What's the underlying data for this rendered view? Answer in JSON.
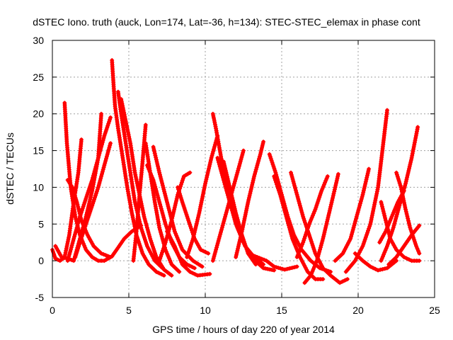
{
  "chart_data": {
    "type": "scatter",
    "title": "dSTEC Iono. truth (auck, Lon=174, Lat=-36, h=134): STEC-STEC_elemax in phase cont",
    "xlabel": "GPS time / hours of day 220 of year 2014",
    "ylabel": "dSTEC  / TECUs",
    "xlim": [
      0,
      25
    ],
    "ylim": [
      -5,
      30
    ],
    "xticks": [
      "0",
      "5",
      "10",
      "15",
      "20",
      "25"
    ],
    "yticks": [
      "-5",
      "0",
      "5",
      "10",
      "15",
      "20",
      "25",
      "30"
    ],
    "grid": true,
    "marker": "+",
    "color": "#ff0000",
    "passes": [
      [
        [
          0.0,
          1.5
        ],
        [
          0.2,
          0.3
        ],
        [
          0.5,
          0.0
        ],
        [
          0.8,
          0.5
        ],
        [
          1.1,
          3.5
        ],
        [
          1.4,
          8.0
        ],
        [
          1.7,
          12.0
        ],
        [
          1.9,
          16.5
        ]
      ],
      [
        [
          0.8,
          21.5
        ],
        [
          0.95,
          16.0
        ],
        [
          1.2,
          10.0
        ],
        [
          1.5,
          6.0
        ],
        [
          1.8,
          3.5
        ],
        [
          2.2,
          1.5
        ],
        [
          2.6,
          0.5
        ],
        [
          3.0,
          0.0
        ],
        [
          3.4,
          0.0
        ],
        [
          3.9,
          0.6
        ],
        [
          4.3,
          1.8
        ],
        [
          4.7,
          3.0
        ],
        [
          5.2,
          4.0
        ],
        [
          5.8,
          4.8
        ]
      ],
      [
        [
          0.2,
          2.0
        ],
        [
          0.6,
          0.5
        ],
        [
          1.0,
          0.3
        ],
        [
          1.4,
          0.0
        ],
        [
          1.8,
          3.0
        ],
        [
          2.2,
          6.0
        ],
        [
          2.6,
          9.5
        ],
        [
          3.0,
          14.0
        ],
        [
          3.2,
          20.0
        ]
      ],
      [
        [
          1.0,
          0.0
        ],
        [
          1.4,
          3.0
        ],
        [
          1.8,
          6.0
        ],
        [
          2.2,
          8.5
        ],
        [
          2.6,
          11.0
        ],
        [
          3.0,
          14.0
        ],
        [
          3.4,
          17.0
        ],
        [
          3.8,
          19.5
        ]
      ],
      [
        [
          1.5,
          0.5
        ],
        [
          1.8,
          2.5
        ],
        [
          2.2,
          5.0
        ],
        [
          2.6,
          7.5
        ],
        [
          3.0,
          10.0
        ],
        [
          3.4,
          13.0
        ],
        [
          3.8,
          16.0
        ]
      ],
      [
        [
          1.0,
          11.0
        ],
        [
          1.3,
          10.0
        ],
        [
          1.6,
          8.0
        ],
        [
          1.9,
          5.5
        ],
        [
          2.3,
          3.5
        ],
        [
          2.7,
          2.0
        ],
        [
          3.2,
          1.0
        ],
        [
          3.8,
          0.5
        ]
      ],
      [
        [
          3.9,
          27.3
        ],
        [
          4.0,
          24.0
        ],
        [
          4.1,
          21.0
        ],
        [
          4.3,
          18.0
        ],
        [
          4.6,
          14.0
        ],
        [
          4.9,
          10.0
        ],
        [
          5.2,
          6.5
        ],
        [
          5.5,
          3.5
        ],
        [
          5.9,
          1.0
        ],
        [
          6.3,
          -0.5
        ],
        [
          6.8,
          -1.5
        ],
        [
          7.3,
          -2.0
        ]
      ],
      [
        [
          4.3,
          23.0
        ],
        [
          4.5,
          20.0
        ],
        [
          4.8,
          16.0
        ],
        [
          5.1,
          12.0
        ],
        [
          5.4,
          8.0
        ],
        [
          5.8,
          4.5
        ],
        [
          6.2,
          2.0
        ],
        [
          6.7,
          0.0
        ],
        [
          7.2,
          -1.0
        ]
      ],
      [
        [
          4.5,
          22.0
        ],
        [
          4.8,
          19.0
        ],
        [
          5.1,
          16.0
        ],
        [
          5.4,
          12.0
        ],
        [
          5.7,
          9.0
        ],
        [
          6.0,
          6.0
        ],
        [
          6.4,
          3.0
        ],
        [
          6.8,
          0.5
        ],
        [
          7.3,
          -1.2
        ],
        [
          7.8,
          -2.0
        ]
      ],
      [
        [
          5.3,
          0.0
        ],
        [
          5.5,
          4.0
        ],
        [
          5.7,
          9.0
        ],
        [
          5.9,
          13.5
        ],
        [
          6.1,
          18.5
        ]
      ],
      [
        [
          6.1,
          16.0
        ],
        [
          6.4,
          12.0
        ],
        [
          6.7,
          8.0
        ],
        [
          7.0,
          4.5
        ],
        [
          7.4,
          1.5
        ],
        [
          7.8,
          -0.5
        ],
        [
          8.3,
          -1.5
        ]
      ],
      [
        [
          6.2,
          13.0
        ],
        [
          6.6,
          11.0
        ],
        [
          7.0,
          8.0
        ],
        [
          7.4,
          5.0
        ],
        [
          7.8,
          2.5
        ],
        [
          8.3,
          0.5
        ],
        [
          8.8,
          -0.5
        ],
        [
          9.3,
          -1.0
        ]
      ],
      [
        [
          6.6,
          15.5
        ],
        [
          7.0,
          12.0
        ],
        [
          7.5,
          8.0
        ],
        [
          8.0,
          4.0
        ],
        [
          8.5,
          1.5
        ],
        [
          9.2,
          0.0
        ],
        [
          9.8,
          -0.8
        ]
      ],
      [
        [
          7.5,
          4.0
        ],
        [
          8.0,
          2.0
        ],
        [
          8.5,
          -0.5
        ],
        [
          9.0,
          -1.5
        ],
        [
          9.5,
          -2.0
        ],
        [
          10.3,
          -1.8
        ]
      ],
      [
        [
          7.0,
          0.0
        ],
        [
          7.4,
          2.5
        ],
        [
          7.8,
          5.5
        ],
        [
          8.2,
          9.0
        ],
        [
          8.6,
          11.5
        ],
        [
          9.0,
          12.0
        ]
      ],
      [
        [
          8.2,
          10.0
        ],
        [
          8.5,
          8.0
        ],
        [
          8.9,
          5.5
        ],
        [
          9.3,
          3.0
        ],
        [
          9.7,
          1.5
        ],
        [
          10.2,
          1.0
        ]
      ],
      [
        [
          8.8,
          0.5
        ],
        [
          9.2,
          3.0
        ],
        [
          9.6,
          6.5
        ],
        [
          10.0,
          10.5
        ],
        [
          10.4,
          14.0
        ],
        [
          10.8,
          17.0
        ]
      ],
      [
        [
          10.5,
          20.0
        ],
        [
          10.7,
          18.0
        ],
        [
          11.0,
          14.5
        ],
        [
          11.3,
          11.0
        ],
        [
          11.7,
          7.5
        ],
        [
          12.1,
          4.5
        ],
        [
          12.6,
          2.0
        ],
        [
          13.2,
          0.5
        ],
        [
          13.8,
          -0.5
        ]
      ],
      [
        [
          10.8,
          14.0
        ],
        [
          11.2,
          11.0
        ],
        [
          11.6,
          8.0
        ],
        [
          12.0,
          5.0
        ],
        [
          12.5,
          2.5
        ],
        [
          13.0,
          0.5
        ],
        [
          13.8,
          -1.0
        ],
        [
          14.5,
          -1.3
        ]
      ],
      [
        [
          11.2,
          13.5
        ],
        [
          11.6,
          10.0
        ],
        [
          12.0,
          6.5
        ],
        [
          12.4,
          3.5
        ],
        [
          12.8,
          1.0
        ],
        [
          13.3,
          -0.5
        ]
      ],
      [
        [
          10.5,
          0.0
        ],
        [
          10.9,
          3.0
        ],
        [
          11.3,
          6.0
        ],
        [
          11.7,
          9.0
        ],
        [
          12.1,
          12.0
        ],
        [
          12.5,
          15.0
        ]
      ],
      [
        [
          12.0,
          0.5
        ],
        [
          12.4,
          4.0
        ],
        [
          12.8,
          8.0
        ],
        [
          13.2,
          11.5
        ],
        [
          13.6,
          14.5
        ],
        [
          13.8,
          16.2
        ]
      ],
      [
        [
          12.8,
          1.0
        ],
        [
          13.4,
          0.5
        ],
        [
          14.0,
          0.0
        ],
        [
          14.5,
          -0.8
        ],
        [
          15.2,
          -1.2
        ],
        [
          16.0,
          -0.8
        ]
      ],
      [
        [
          14.2,
          14.5
        ],
        [
          14.6,
          12.0
        ],
        [
          15.0,
          9.0
        ],
        [
          15.4,
          6.0
        ],
        [
          15.8,
          3.5
        ],
        [
          16.3,
          1.5
        ],
        [
          16.9,
          0.0
        ],
        [
          17.5,
          -1.0
        ],
        [
          18.2,
          -1.5
        ]
      ],
      [
        [
          14.5,
          11.5
        ],
        [
          14.9,
          9.0
        ],
        [
          15.3,
          6.0
        ],
        [
          15.7,
          3.0
        ],
        [
          16.2,
          0.5
        ],
        [
          16.7,
          -1.5
        ],
        [
          17.2,
          -2.5
        ],
        [
          17.7,
          -2.5
        ]
      ],
      [
        [
          15.6,
          12.0
        ],
        [
          16.0,
          9.0
        ],
        [
          16.4,
          6.0
        ],
        [
          16.8,
          3.5
        ],
        [
          17.2,
          1.0
        ],
        [
          17.7,
          -1.0
        ],
        [
          18.2,
          -2.0
        ],
        [
          18.8,
          -3.0
        ],
        [
          19.3,
          -2.5
        ]
      ],
      [
        [
          16.5,
          -3.0
        ],
        [
          16.9,
          -2.0
        ],
        [
          17.3,
          0.0
        ],
        [
          17.7,
          3.0
        ],
        [
          18.1,
          6.5
        ],
        [
          18.5,
          10.0
        ],
        [
          18.7,
          11.8
        ]
      ],
      [
        [
          16.0,
          0.5
        ],
        [
          16.4,
          2.5
        ],
        [
          16.8,
          5.0
        ],
        [
          17.2,
          7.0
        ],
        [
          17.6,
          9.5
        ],
        [
          18.0,
          11.5
        ]
      ],
      [
        [
          18.5,
          0.0
        ],
        [
          19.0,
          1.0
        ],
        [
          19.5,
          3.0
        ],
        [
          19.9,
          6.0
        ],
        [
          20.3,
          9.0
        ],
        [
          20.7,
          12.5
        ]
      ],
      [
        [
          19.2,
          -1.5
        ],
        [
          19.8,
          0.0
        ],
        [
          20.3,
          2.0
        ],
        [
          20.8,
          5.0
        ],
        [
          21.3,
          10.0
        ],
        [
          21.7,
          17.0
        ],
        [
          21.9,
          20.5
        ]
      ],
      [
        [
          19.8,
          1.0
        ],
        [
          20.3,
          0.0
        ],
        [
          20.8,
          -0.8
        ],
        [
          21.3,
          -1.3
        ],
        [
          21.9,
          -1.0
        ],
        [
          22.5,
          0.0
        ]
      ],
      [
        [
          21.5,
          8.0
        ],
        [
          21.8,
          5.5
        ],
        [
          22.1,
          3.0
        ],
        [
          22.5,
          1.5
        ],
        [
          23.0,
          0.5
        ],
        [
          23.5,
          0.0
        ],
        [
          24.0,
          0.0
        ]
      ],
      [
        [
          22.5,
          12.0
        ],
        [
          22.8,
          10.0
        ],
        [
          23.1,
          7.0
        ],
        [
          23.4,
          4.5
        ],
        [
          23.8,
          2.0
        ],
        [
          24.0,
          1.0
        ]
      ],
      [
        [
          21.5,
          0.0
        ],
        [
          21.9,
          2.0
        ],
        [
          22.3,
          4.5
        ],
        [
          22.7,
          7.5
        ],
        [
          23.1,
          10.5
        ],
        [
          23.5,
          14.0
        ],
        [
          23.9,
          18.2
        ]
      ],
      [
        [
          22.0,
          -0.5
        ],
        [
          22.5,
          0.5
        ],
        [
          23.0,
          2.0
        ],
        [
          23.5,
          3.5
        ],
        [
          24.0,
          4.8
        ]
      ],
      [
        [
          21.4,
          2.5
        ],
        [
          21.8,
          4.0
        ],
        [
          22.2,
          6.0
        ],
        [
          22.6,
          8.0
        ],
        [
          23.0,
          9.5
        ]
      ]
    ]
  }
}
